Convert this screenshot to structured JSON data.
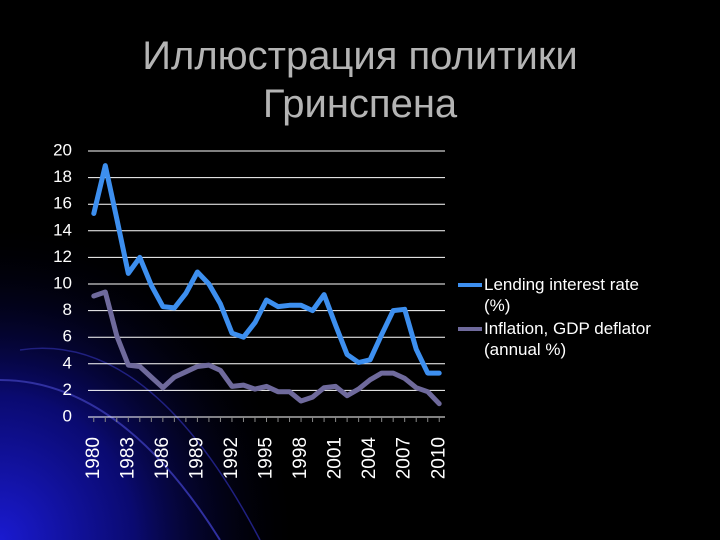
{
  "chart_data": {
    "type": "line",
    "title": "Иллюстрация политики Гринспена",
    "categories": [
      "1980",
      null,
      null,
      "1983",
      null,
      null,
      "1986",
      null,
      null,
      "1989",
      null,
      null,
      "1992",
      null,
      null,
      "1995",
      null,
      null,
      "1998",
      null,
      null,
      "2001",
      null,
      null,
      "2004",
      null,
      null,
      "2007",
      null,
      null,
      "2010"
    ],
    "series": [
      {
        "name": "Lending interest rate (%)",
        "color": "#3d8fef",
        "values": [
          15.3,
          18.9,
          14.9,
          10.8,
          12.0,
          9.9,
          8.3,
          8.2,
          9.3,
          10.9,
          10.0,
          8.5,
          6.3,
          6.0,
          7.1,
          8.8,
          8.3,
          8.4,
          8.4,
          8.0,
          9.2,
          6.9,
          4.7,
          4.1,
          4.3,
          6.2,
          8.0,
          8.1,
          5.1,
          3.3,
          3.3
        ]
      },
      {
        "name": "Inflation, GDP deflator (annual %)",
        "color": "#6f6a9c",
        "values": [
          9.1,
          9.4,
          6.1,
          3.9,
          3.8,
          3.0,
          2.2,
          3.0,
          3.4,
          3.8,
          3.9,
          3.5,
          2.3,
          2.4,
          2.1,
          2.3,
          1.9,
          1.9,
          1.2,
          1.5,
          2.2,
          2.3,
          1.6,
          2.1,
          2.8,
          3.3,
          3.3,
          2.9,
          2.2,
          1.9,
          1.0
        ]
      }
    ],
    "ylim": [
      0,
      20
    ],
    "yticks": [
      0,
      2,
      4,
      6,
      8,
      10,
      12,
      14,
      16,
      18,
      20
    ],
    "grid": true,
    "legend": "right"
  }
}
